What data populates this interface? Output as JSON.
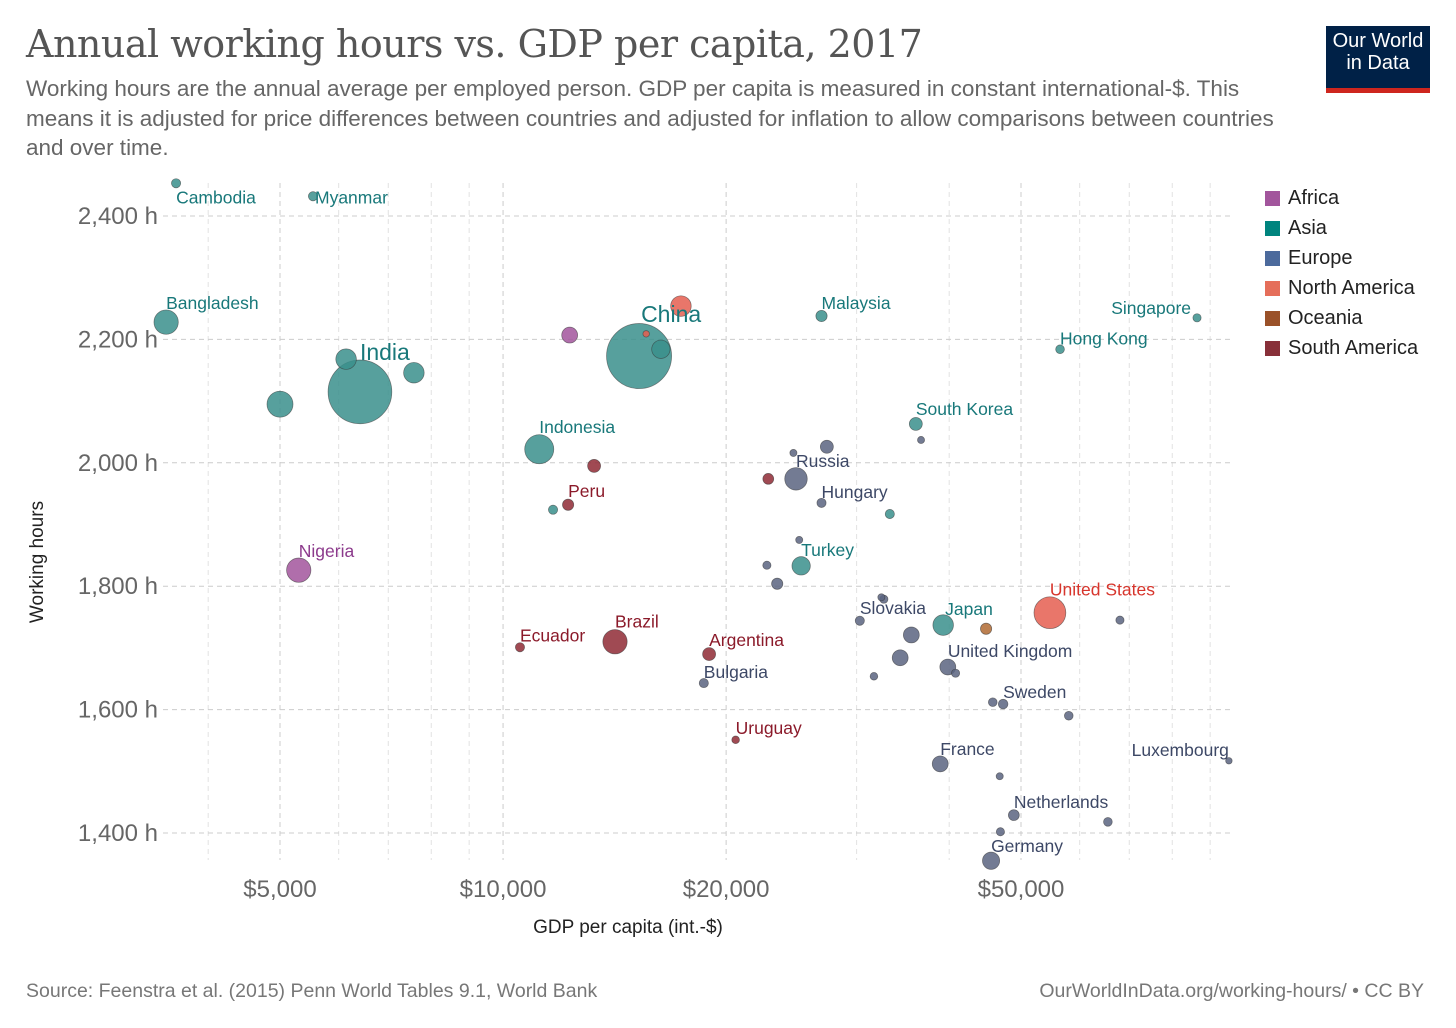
{
  "header": {
    "title": "Annual working hours vs. GDP per capita, 2017",
    "subtitle": "Working hours are the annual average per employed person. GDP per capita is measured in constant international-$. This means it is adjusted for price differences between countries and adjusted for inflation to allow comparisons between countries and over time.",
    "logo_line1": "Our World",
    "logo_line2": "in Data"
  },
  "footer": {
    "source": "Source: Feenstra et al. (2015) Penn World Tables 9.1, World Bank",
    "license": "OurWorldInData.org/working-hours/ • CC BY"
  },
  "chart_data": {
    "type": "scatter",
    "title": "Annual working hours vs. GDP per capita, 2017",
    "xlabel": "GDP per capita (int.-$)",
    "ylabel": "Working hours",
    "xscale": "log",
    "xlim": [
      3300,
      96000
    ],
    "ylim": [
      1355,
      2460
    ],
    "xticks": [
      {
        "value": 5000,
        "label": "$5,000"
      },
      {
        "value": 10000,
        "label": "$10,000"
      },
      {
        "value": 20000,
        "label": "$20,000"
      },
      {
        "value": 50000,
        "label": "$50,000"
      }
    ],
    "yticks": [
      {
        "value": 1400,
        "label": "1,400 h"
      },
      {
        "value": 1600,
        "label": "1,600 h"
      },
      {
        "value": 1800,
        "label": "1,800 h"
      },
      {
        "value": 2000,
        "label": "2,000 h"
      },
      {
        "value": 2200,
        "label": "2,200 h"
      },
      {
        "value": 2400,
        "label": "2,400 h"
      }
    ],
    "grid": true,
    "legend_position": "right",
    "legend": [
      {
        "name": "Africa",
        "color": "#a2559c"
      },
      {
        "name": "Asia",
        "color": "#00847e"
      },
      {
        "name": "Europe",
        "color": "#4c6a9c"
      },
      {
        "name": "North America",
        "color": "#e56e5a"
      },
      {
        "name": "Oceania",
        "color": "#9a5129"
      },
      {
        "name": "South America",
        "color": "#883039"
      }
    ],
    "points": [
      {
        "label": "Cambodia",
        "region": "Asia",
        "gdp": 3620,
        "hours": 2453,
        "size": 1
      },
      {
        "label": "Myanmar",
        "region": "Asia",
        "gdp": 5540,
        "hours": 2432,
        "size": 1
      },
      {
        "label": "Bangladesh",
        "region": "Asia",
        "gdp": 3510,
        "hours": 2228,
        "size": 7
      },
      {
        "label": "",
        "region": "Asia",
        "gdp": 5000,
        "hours": 2095,
        "size": 8
      },
      {
        "label": "",
        "region": "Asia",
        "gdp": 6140,
        "hours": 2168,
        "size": 5
      },
      {
        "label": "India",
        "region": "Asia",
        "gdp": 6410,
        "hours": 2115,
        "size": 48
      },
      {
        "label": "",
        "region": "Asia",
        "gdp": 7580,
        "hours": 2146,
        "size": 5
      },
      {
        "label": "",
        "region": "Africa",
        "gdp": 12300,
        "hours": 2207,
        "size": 3
      },
      {
        "label": "",
        "region": "North America",
        "gdp": 17380,
        "hours": 2254,
        "size": 5
      },
      {
        "label": "China",
        "region": "Asia",
        "gdp": 15260,
        "hours": 2173,
        "size": 50
      },
      {
        "label": "",
        "region": "North America",
        "gdp": 15600,
        "hours": 2209,
        "size": 0.5
      },
      {
        "label": "",
        "region": "Asia",
        "gdp": 16330,
        "hours": 2184,
        "size": 4
      },
      {
        "label": "Indonesia",
        "region": "Asia",
        "gdp": 11190,
        "hours": 2022,
        "size": 10
      },
      {
        "label": "",
        "region": "South America",
        "gdp": 13270,
        "hours": 1995,
        "size": 2
      },
      {
        "label": "Peru",
        "region": "South America",
        "gdp": 12240,
        "hours": 1932,
        "size": 1.5
      },
      {
        "label": "",
        "region": "Asia",
        "gdp": 11680,
        "hours": 1924,
        "size": 1
      },
      {
        "label": "Nigeria",
        "region": "Africa",
        "gdp": 5300,
        "hours": 1826,
        "size": 7
      },
      {
        "label": "Ecuador",
        "region": "South America",
        "gdp": 10540,
        "hours": 1701,
        "size": 1
      },
      {
        "label": "Brazil",
        "region": "South America",
        "gdp": 14160,
        "hours": 1710,
        "size": 7
      },
      {
        "label": "Argentina",
        "region": "South America",
        "gdp": 18970,
        "hours": 1690,
        "size": 2
      },
      {
        "label": "Bulgaria",
        "region": "Europe",
        "gdp": 18660,
        "hours": 1643,
        "size": 1
      },
      {
        "label": "Uruguay",
        "region": "South America",
        "gdp": 20600,
        "hours": 1551,
        "size": 0.7
      },
      {
        "label": "",
        "region": "South America",
        "gdp": 22800,
        "hours": 1974,
        "size": 1.4
      },
      {
        "label": "Russia",
        "region": "Europe",
        "gdp": 24850,
        "hours": 1974,
        "size": 6
      },
      {
        "label": "",
        "region": "Europe",
        "gdp": 24650,
        "hours": 2016,
        "size": 0.6
      },
      {
        "label": "",
        "region": "Europe",
        "gdp": 27350,
        "hours": 2026,
        "size": 2
      },
      {
        "label": "Hungary",
        "region": "Europe",
        "gdp": 26900,
        "hours": 1935,
        "size": 1
      },
      {
        "label": "",
        "region": "Asia",
        "gdp": 33260,
        "hours": 1917,
        "size": 1
      },
      {
        "label": "Turkey",
        "region": "Asia",
        "gdp": 25250,
        "hours": 1833,
        "size": 4
      },
      {
        "label": "",
        "region": "Europe",
        "gdp": 25100,
        "hours": 1875,
        "size": 0.6
      },
      {
        "label": "",
        "region": "Europe",
        "gdp": 22700,
        "hours": 1834,
        "size": 0.8
      },
      {
        "label": "",
        "region": "Europe",
        "gdp": 23440,
        "hours": 1804,
        "size": 1.5
      },
      {
        "label": "Malaysia",
        "region": "Asia",
        "gdp": 26900,
        "hours": 2238,
        "size": 1.5
      },
      {
        "label": "South Korea",
        "region": "Asia",
        "gdp": 36060,
        "hours": 2063,
        "size": 2
      },
      {
        "label": "",
        "region": "Europe",
        "gdp": 36650,
        "hours": 2037,
        "size": 0.6
      },
      {
        "label": "Singapore",
        "region": "Asia",
        "gdp": 86400,
        "hours": 2235,
        "size": 0.8
      },
      {
        "label": "Hong Kong",
        "region": "Asia",
        "gdp": 56450,
        "hours": 2184,
        "size": 0.9
      },
      {
        "label": "",
        "region": "Europe",
        "gdp": 32400,
        "hours": 1782,
        "size": 0.6
      },
      {
        "label": "Slovakia",
        "region": "Europe",
        "gdp": 32650,
        "hours": 1779,
        "size": 0.8
      },
      {
        "label": "",
        "region": "Europe",
        "gdp": 30300,
        "hours": 1744,
        "size": 1
      },
      {
        "label": "",
        "region": "Europe",
        "gdp": 35560,
        "hours": 1721,
        "size": 3
      },
      {
        "label": "",
        "region": "Europe",
        "gdp": 34350,
        "hours": 1684,
        "size": 3
      },
      {
        "label": "",
        "region": "Europe",
        "gdp": 31660,
        "hours": 1654,
        "size": 0.7
      },
      {
        "label": "Japan",
        "region": "Asia",
        "gdp": 39260,
        "hours": 1737,
        "size": 5
      },
      {
        "label": "",
        "region": "Oceania",
        "gdp": 44860,
        "hours": 1731,
        "size": 1.5
      },
      {
        "label": "United States",
        "region": "North America",
        "gdp": 54700,
        "hours": 1757,
        "size": 12
      },
      {
        "label": "",
        "region": "Europe",
        "gdp": 68000,
        "hours": 1745,
        "size": 0.8
      },
      {
        "label": "United Kingdom",
        "region": "Europe",
        "gdp": 39830,
        "hours": 1669,
        "size": 3
      },
      {
        "label": "",
        "region": "Europe",
        "gdp": 40800,
        "hours": 1659,
        "size": 0.8
      },
      {
        "label": "",
        "region": "Europe",
        "gdp": 45800,
        "hours": 1612,
        "size": 0.9
      },
      {
        "label": "Sweden",
        "region": "Europe",
        "gdp": 47300,
        "hours": 1609,
        "size": 1.1
      },
      {
        "label": "",
        "region": "Europe",
        "gdp": 58000,
        "hours": 1590,
        "size": 0.9
      },
      {
        "label": "France",
        "region": "Europe",
        "gdp": 38900,
        "hours": 1512,
        "size": 3
      },
      {
        "label": "",
        "region": "Europe",
        "gdp": 46800,
        "hours": 1492,
        "size": 0.6
      },
      {
        "label": "Luxembourg",
        "region": "Europe",
        "gdp": 95400,
        "hours": 1517,
        "size": 0.5
      },
      {
        "label": "Netherlands",
        "region": "Europe",
        "gdp": 48900,
        "hours": 1429,
        "size": 1.4
      },
      {
        "label": "",
        "region": "Europe",
        "gdp": 65500,
        "hours": 1418,
        "size": 0.9
      },
      {
        "label": "",
        "region": "Europe",
        "gdp": 46900,
        "hours": 1402,
        "size": 0.8
      },
      {
        "label": "Germany",
        "region": "Europe",
        "gdp": 45560,
        "hours": 1355,
        "size": 3.5
      }
    ]
  }
}
